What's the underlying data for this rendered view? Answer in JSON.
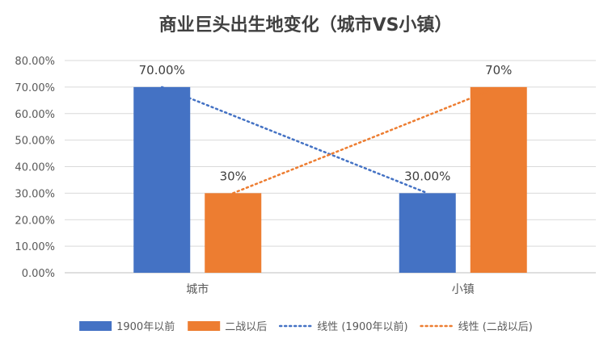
{
  "chart_data": {
    "type": "bar",
    "title": "商业巨头出生地变化（城市VS小镇）",
    "categories": [
      "城市",
      "小镇"
    ],
    "ylim": [
      0,
      0.8
    ],
    "yticks": [
      0,
      0.1,
      0.2,
      0.3,
      0.4,
      0.5,
      0.6,
      0.7,
      0.8
    ],
    "ytick_labels": [
      "0.00%",
      "10.00%",
      "20.00%",
      "30.00%",
      "40.00%",
      "50.00%",
      "60.00%",
      "70.00%",
      "80.00%"
    ],
    "grid": true,
    "legend_position": "bottom",
    "series": [
      {
        "name": "1900年以前",
        "values": [
          0.7,
          0.3
        ],
        "labels": [
          "70.00%",
          "30.00%"
        ],
        "color": "#4472C4"
      },
      {
        "name": "二战以后",
        "values": [
          0.3,
          0.7
        ],
        "labels": [
          "30%",
          "70%"
        ],
        "color": "#ED7D31"
      }
    ],
    "trendlines": [
      {
        "name": "线性 (1900年以前)",
        "series_index": 0,
        "color": "#4472C4",
        "style": "dotted"
      },
      {
        "name": "线性 (二战以后)",
        "series_index": 1,
        "color": "#ED7D31",
        "style": "dotted"
      }
    ]
  }
}
